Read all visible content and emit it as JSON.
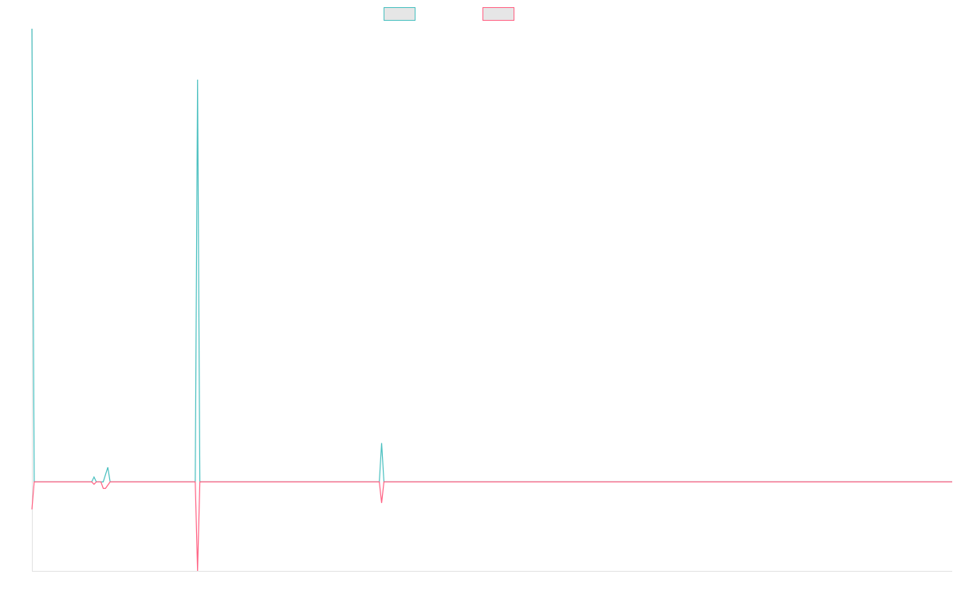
{
  "chart_data": {
    "type": "line",
    "title": "",
    "xlabel": "",
    "ylabel": "",
    "legend_placement": "top-center",
    "grid": false,
    "x": [
      0,
      1,
      2,
      3,
      4,
      5,
      6,
      7,
      8,
      9,
      10,
      11,
      12,
      13,
      14,
      15,
      16,
      17,
      18,
      19,
      20,
      21,
      22,
      23,
      24,
      25,
      26,
      27,
      28,
      29,
      30,
      31,
      32,
      33,
      34,
      35,
      36,
      37,
      38,
      39,
      40,
      41,
      42,
      43,
      44,
      45,
      46,
      47,
      48,
      49,
      50,
      51,
      52,
      53,
      54,
      55,
      56,
      57,
      58,
      59,
      60,
      61,
      62,
      63,
      64,
      65,
      66,
      67,
      68,
      69,
      70,
      71,
      72,
      73,
      74,
      75,
      76,
      77,
      78,
      79,
      80,
      81,
      82,
      83,
      84,
      85,
      86,
      87,
      88,
      89,
      90,
      91,
      92,
      93,
      94,
      95,
      96,
      97,
      98,
      99,
      100,
      101,
      102,
      103,
      104,
      105,
      106,
      107,
      108,
      109,
      110,
      111,
      112,
      113,
      114,
      115,
      116,
      117,
      118,
      119,
      120,
      121,
      122,
      123,
      124,
      125,
      126,
      127,
      128,
      129,
      130,
      131,
      132,
      133,
      134,
      135,
      136,
      137,
      138,
      139,
      140,
      141,
      142,
      143,
      144,
      145,
      146,
      147,
      148,
      149,
      150,
      151,
      152,
      153,
      154,
      155,
      156,
      157,
      158,
      159,
      160,
      161,
      162,
      163,
      164,
      165,
      166,
      167,
      168,
      169,
      170,
      171,
      172,
      173,
      174,
      175,
      176,
      177,
      178,
      179,
      180,
      181,
      182,
      183,
      184,
      185,
      186,
      187,
      188,
      189,
      190,
      191,
      192,
      193,
      194,
      195,
      196,
      197,
      198,
      199,
      200,
      201,
      202,
      203,
      204,
      205,
      206,
      207,
      208,
      209,
      210,
      211,
      212,
      213,
      214,
      215,
      216,
      217,
      218,
      219,
      220,
      221,
      222,
      223,
      224,
      225,
      226,
      227,
      228,
      229,
      230,
      231,
      232,
      233,
      234,
      235,
      236,
      237,
      238,
      239,
      240,
      241,
      242,
      243,
      244,
      245,
      246,
      247,
      248,
      249,
      250,
      251,
      252,
      253,
      254,
      255,
      256,
      257,
      258,
      259,
      260,
      261,
      262,
      263,
      264,
      265,
      266,
      267,
      268,
      269,
      270,
      271,
      272,
      273,
      274,
      275,
      276,
      277,
      278,
      279,
      280,
      281,
      282,
      283,
      284,
      285,
      286,
      287,
      288,
      289,
      290,
      291,
      292,
      293,
      294,
      295,
      296,
      297,
      298,
      299,
      300,
      301,
      302,
      303,
      304,
      305,
      306,
      307,
      308,
      309,
      310,
      311,
      312,
      313,
      314,
      315,
      316,
      317,
      318,
      319,
      320,
      321,
      322,
      323,
      324,
      325,
      326,
      327,
      328,
      329,
      330,
      331,
      332,
      333,
      334,
      335,
      336,
      337,
      338,
      339,
      340,
      341,
      342,
      343,
      344,
      345,
      346,
      347,
      348,
      349,
      350,
      351,
      352,
      353,
      354,
      355,
      356,
      357,
      358,
      359,
      360,
      361,
      362,
      363,
      364,
      365,
      366,
      367,
      368,
      369,
      370,
      371,
      372,
      373,
      374,
      375,
      376,
      377,
      378,
      379,
      380,
      381,
      382,
      383,
      384,
      385,
      386,
      387,
      388,
      389,
      390,
      391,
      392,
      393,
      394,
      395,
      396,
      397,
      398,
      399,
      400
    ],
    "xlim": [
      0,
      400
    ],
    "ylim": [
      -110,
      560
    ],
    "series": [
      {
        "color": "#4bc0c0",
        "points": [
          [
            0,
            560
          ],
          [
            1,
            0
          ],
          [
            26,
            0
          ],
          [
            27,
            6
          ],
          [
            28,
            0
          ],
          [
            31,
            0
          ],
          [
            33,
            18
          ],
          [
            34,
            0
          ],
          [
            71,
            0
          ],
          [
            72,
            497
          ],
          [
            73,
            0
          ],
          [
            151,
            0
          ],
          [
            152,
            48
          ],
          [
            153,
            0
          ],
          [
            400,
            0
          ]
        ]
      },
      {
        "color": "#ff6384",
        "points": [
          [
            0,
            -34
          ],
          [
            1,
            0
          ],
          [
            26,
            0
          ],
          [
            27,
            -3
          ],
          [
            28,
            0
          ],
          [
            30,
            0
          ],
          [
            31,
            -8
          ],
          [
            32,
            -8
          ],
          [
            34,
            0
          ],
          [
            71,
            0
          ],
          [
            72,
            -110
          ],
          [
            73,
            0
          ],
          [
            151,
            0
          ],
          [
            152,
            -26
          ],
          [
            153,
            0
          ],
          [
            400,
            0
          ]
        ]
      }
    ]
  }
}
